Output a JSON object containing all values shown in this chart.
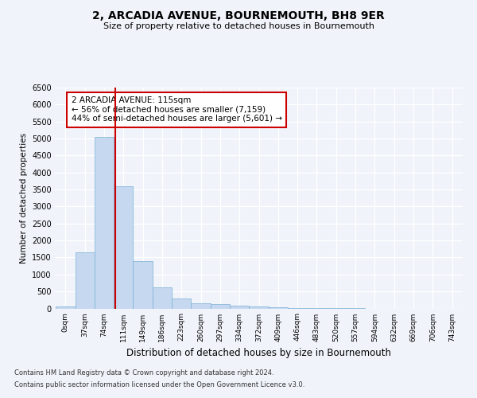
{
  "title_line1": "2, ARCADIA AVENUE, BOURNEMOUTH, BH8 9ER",
  "title_line2": "Size of property relative to detached houses in Bournemouth",
  "xlabel": "Distribution of detached houses by size in Bournemouth",
  "ylabel": "Number of detached properties",
  "bin_labels": [
    "0sqm",
    "37sqm",
    "74sqm",
    "111sqm",
    "149sqm",
    "186sqm",
    "223sqm",
    "260sqm",
    "297sqm",
    "334sqm",
    "372sqm",
    "409sqm",
    "446sqm",
    "483sqm",
    "520sqm",
    "557sqm",
    "594sqm",
    "632sqm",
    "669sqm",
    "706sqm",
    "743sqm"
  ],
  "bar_values": [
    55,
    1650,
    5050,
    3600,
    1400,
    620,
    300,
    150,
    130,
    90,
    60,
    35,
    8,
    3,
    2,
    1,
    0,
    0,
    0,
    0,
    0
  ],
  "bar_color": "#c5d8f0",
  "bar_edge_color": "#7aafd4",
  "vline_x": 3,
  "vline_color": "#cc0000",
  "annotation_title": "2 ARCADIA AVENUE: 115sqm",
  "annotation_line1": "← 56% of detached houses are smaller (7,159)",
  "annotation_line2": "44% of semi-detached houses are larger (5,601) →",
  "annotation_box_color": "#cc0000",
  "ylim": [
    0,
    6500
  ],
  "yticks": [
    0,
    500,
    1000,
    1500,
    2000,
    2500,
    3000,
    3500,
    4000,
    4500,
    5000,
    5500,
    6000,
    6500
  ],
  "footnote_line1": "Contains HM Land Registry data © Crown copyright and database right 2024.",
  "footnote_line2": "Contains public sector information licensed under the Open Government Licence v3.0.",
  "bg_color": "#f0f4fa",
  "grid_color": "#ffffff",
  "bin_width": 37,
  "property_bin": 3
}
